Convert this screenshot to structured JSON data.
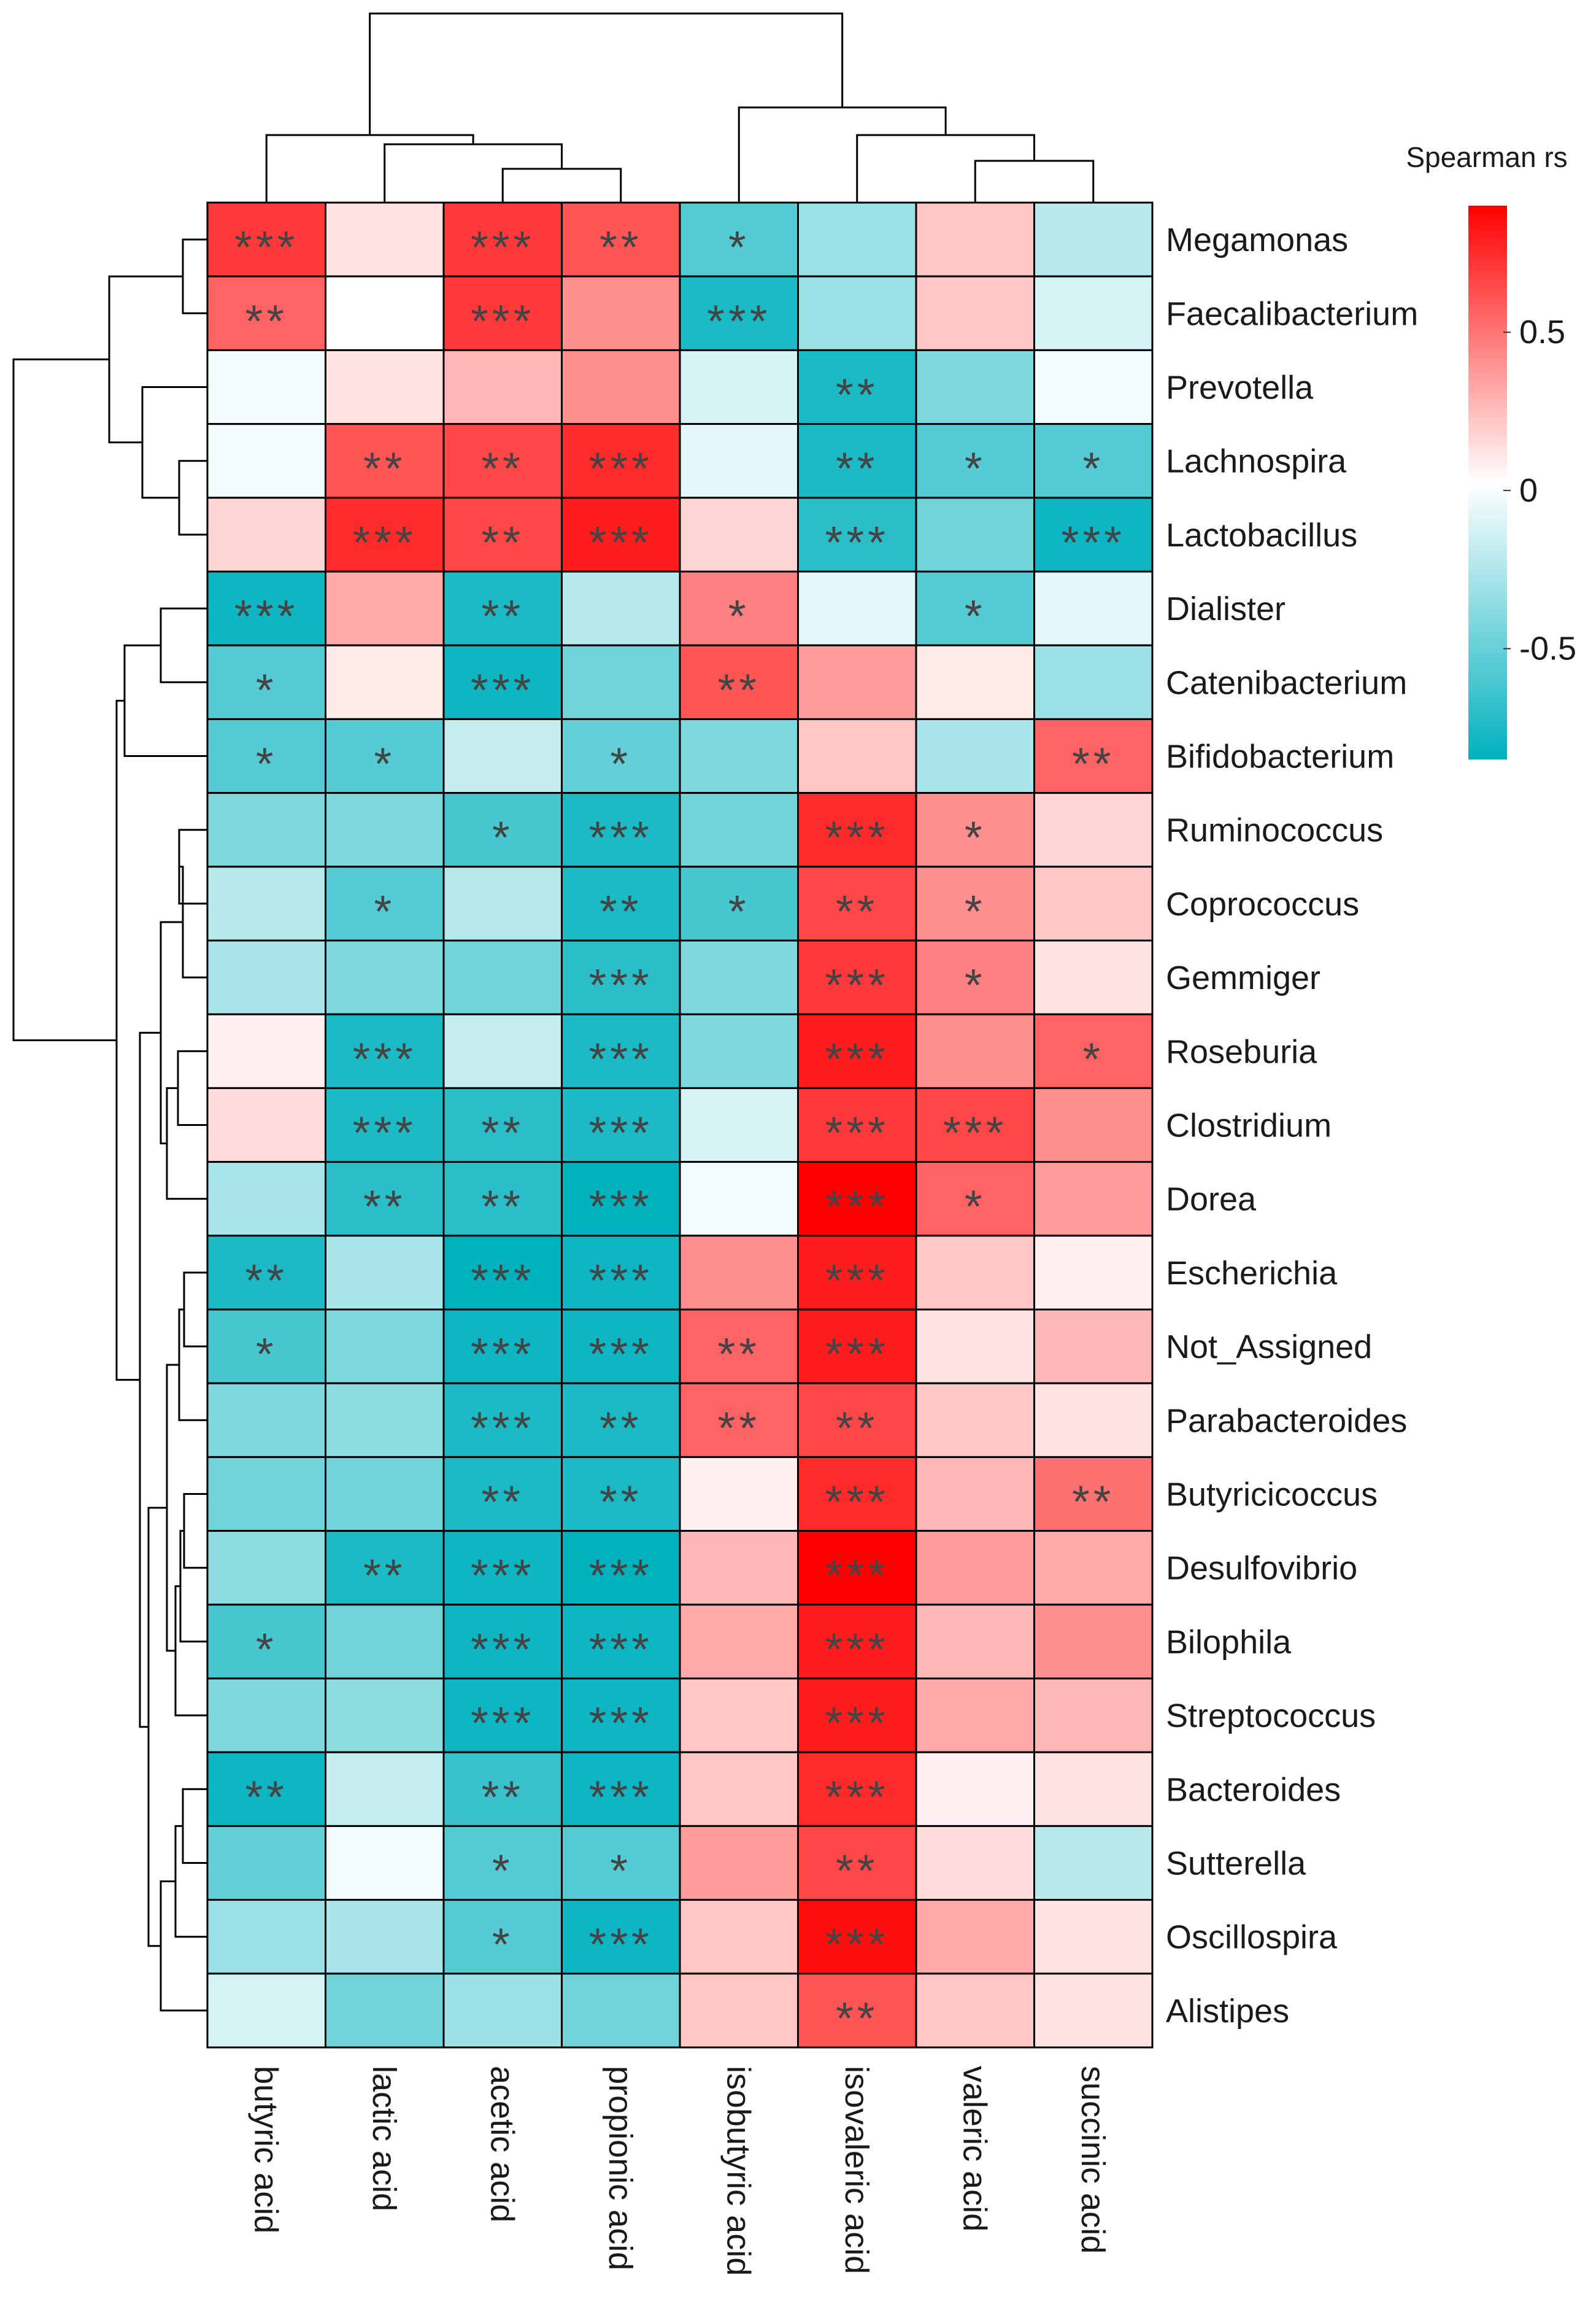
{
  "chart_data": {
    "type": "heatmap",
    "title": "",
    "columns": [
      "butyric acid",
      "lactic acid",
      "acetic acid",
      "propionic acid",
      "isobutyric acid",
      "isovaleric acid",
      "valeric acid",
      "succinic acid"
    ],
    "rows": [
      "Megamonas",
      "Faecalibacterium",
      "Prevotella",
      "Lachnospira",
      "Lactobacillus",
      "Dialister",
      "Catenibacterium",
      "Bifidobacterium",
      "Ruminococcus",
      "Coprococcus",
      "Gemmiger",
      "Roseburia",
      "Clostridium",
      "Dorea",
      "Escherichia",
      "Not_Assigned",
      "Parabacteroides",
      "Butyricicoccus",
      "Desulfovibrio",
      "Bilophila",
      "Streptococcus",
      "Bacteroides",
      "Sutterella",
      "Oscillospira",
      "Alistipes"
    ],
    "values": [
      [
        0.7,
        0.1,
        0.7,
        0.6,
        -0.6,
        -0.35,
        0.2,
        -0.25
      ],
      [
        0.55,
        0.0,
        0.7,
        0.4,
        -0.8,
        -0.35,
        0.2,
        -0.15
      ],
      [
        -0.05,
        0.1,
        0.25,
        0.4,
        -0.15,
        -0.8,
        -0.45,
        -0.05
      ],
      [
        -0.05,
        0.6,
        0.65,
        0.75,
        -0.1,
        -0.8,
        -0.6,
        -0.6
      ],
      [
        0.15,
        0.75,
        0.65,
        0.8,
        0.15,
        -0.75,
        -0.5,
        -0.85
      ],
      [
        -0.85,
        0.3,
        -0.8,
        -0.25,
        0.45,
        -0.1,
        -0.6,
        -0.1
      ],
      [
        -0.6,
        0.08,
        -0.85,
        -0.5,
        0.6,
        0.35,
        0.08,
        -0.35
      ],
      [
        -0.6,
        -0.6,
        -0.2,
        -0.55,
        -0.45,
        0.2,
        -0.3,
        0.55
      ],
      [
        -0.45,
        -0.45,
        -0.65,
        -0.8,
        -0.5,
        0.75,
        0.4,
        0.15
      ],
      [
        -0.25,
        -0.6,
        -0.25,
        -0.8,
        -0.65,
        0.65,
        0.4,
        0.2
      ],
      [
        -0.3,
        -0.45,
        -0.5,
        -0.75,
        -0.45,
        0.7,
        0.45,
        0.1
      ],
      [
        0.05,
        -0.8,
        -0.2,
        -0.8,
        -0.45,
        0.8,
        0.4,
        0.55
      ],
      [
        0.12,
        -0.8,
        -0.75,
        -0.8,
        -0.15,
        0.7,
        0.65,
        0.4
      ],
      [
        -0.3,
        -0.75,
        -0.75,
        -0.9,
        -0.05,
        0.95,
        0.55,
        0.35
      ],
      [
        -0.8,
        -0.3,
        -0.9,
        -0.85,
        0.4,
        0.8,
        0.2,
        0.05
      ],
      [
        -0.65,
        -0.45,
        -0.85,
        -0.85,
        0.55,
        0.8,
        0.1,
        0.25
      ],
      [
        -0.45,
        -0.4,
        -0.8,
        -0.8,
        0.55,
        0.65,
        0.2,
        0.1
      ],
      [
        -0.5,
        -0.5,
        -0.8,
        -0.8,
        0.05,
        0.75,
        0.25,
        0.5
      ],
      [
        -0.4,
        -0.8,
        -0.85,
        -0.9,
        0.25,
        0.9,
        0.35,
        0.3
      ],
      [
        -0.65,
        -0.5,
        -0.85,
        -0.85,
        0.3,
        0.8,
        0.25,
        0.4
      ],
      [
        -0.45,
        -0.4,
        -0.85,
        -0.85,
        0.2,
        0.8,
        0.3,
        0.25
      ],
      [
        -0.85,
        -0.2,
        -0.7,
        -0.85,
        0.2,
        0.75,
        0.05,
        0.1
      ],
      [
        -0.55,
        -0.05,
        -0.6,
        -0.6,
        0.35,
        0.65,
        0.12,
        -0.25
      ],
      [
        -0.35,
        -0.3,
        -0.6,
        -0.85,
        0.2,
        0.85,
        0.3,
        0.1
      ],
      [
        -0.15,
        -0.5,
        -0.35,
        -0.5,
        0.2,
        0.6,
        0.2,
        0.1
      ]
    ],
    "significance": [
      [
        "***",
        "",
        "***",
        "**",
        "*",
        "",
        "",
        ""
      ],
      [
        "**",
        "",
        "***",
        "",
        "***",
        "",
        "",
        ""
      ],
      [
        "",
        "",
        "",
        "",
        "",
        "**",
        "",
        ""
      ],
      [
        "",
        "**",
        "**",
        "***",
        "",
        "**",
        "*",
        "*"
      ],
      [
        "",
        "***",
        "**",
        "***",
        "",
        "***",
        "",
        "***"
      ],
      [
        "***",
        "",
        "**",
        "",
        "*",
        "",
        "*",
        ""
      ],
      [
        "*",
        "",
        "***",
        "",
        "**",
        "",
        "",
        ""
      ],
      [
        "*",
        "*",
        "",
        "*",
        "",
        "",
        "",
        "**"
      ],
      [
        "",
        "",
        "*",
        "***",
        "",
        "***",
        "*",
        ""
      ],
      [
        "",
        "*",
        "",
        "**",
        "*",
        "**",
        "*",
        ""
      ],
      [
        "",
        "",
        "",
        "***",
        "",
        "***",
        "*",
        ""
      ],
      [
        "",
        "***",
        "",
        "***",
        "",
        "***",
        "",
        "*"
      ],
      [
        "",
        "***",
        "**",
        "***",
        "",
        "***",
        "***",
        ""
      ],
      [
        "",
        "**",
        "**",
        "***",
        "",
        "***",
        "*",
        ""
      ],
      [
        "**",
        "",
        "***",
        "***",
        "",
        "***",
        "",
        ""
      ],
      [
        "*",
        "",
        "***",
        "***",
        "**",
        "***",
        "",
        ""
      ],
      [
        "",
        "",
        "***",
        "**",
        "**",
        "**",
        "",
        ""
      ],
      [
        "",
        "",
        "**",
        "**",
        "",
        "***",
        "",
        "**"
      ],
      [
        "",
        "**",
        "***",
        "***",
        "",
        "***",
        "",
        ""
      ],
      [
        "*",
        "",
        "***",
        "***",
        "",
        "***",
        "",
        ""
      ],
      [
        "",
        "",
        "***",
        "***",
        "",
        "***",
        "",
        ""
      ],
      [
        "**",
        "",
        "**",
        "***",
        "",
        "***",
        "",
        ""
      ],
      [
        "",
        "",
        "*",
        "*",
        "",
        "**",
        "",
        ""
      ],
      [
        "",
        "",
        "*",
        "***",
        "",
        "***",
        "",
        ""
      ],
      [
        "",
        "",
        "",
        "",
        "",
        "**",
        "",
        ""
      ]
    ],
    "legend": {
      "title": "Spearman rs",
      "ticks": [
        "0.5",
        "0",
        "-0.5"
      ],
      "tick_values": [
        0.5,
        0,
        -0.5
      ],
      "range": [
        -0.85,
        0.9
      ],
      "placement": "top-right"
    },
    "colors": {
      "low": "#00B1BE",
      "mid": "#FFFFFF",
      "high": "#FF0000"
    }
  }
}
